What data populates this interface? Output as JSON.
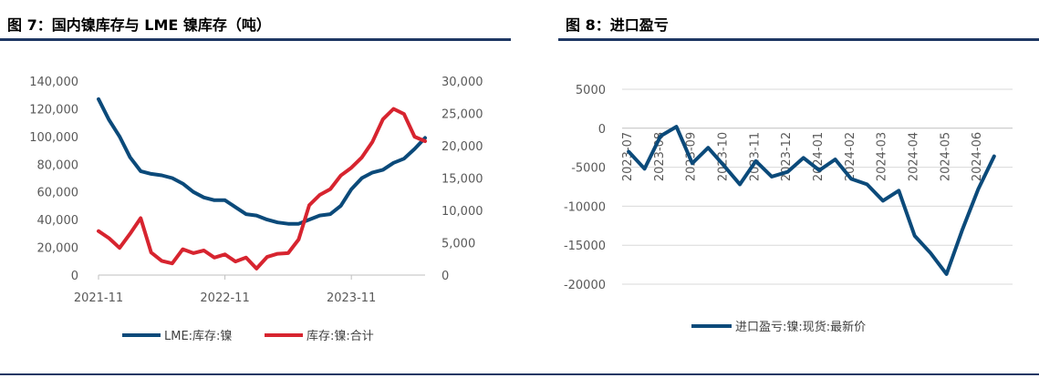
{
  "figures": {
    "left_title": "图 7：国内镍库存与 LME 镍库存（吨）",
    "right_title": "图 8：进口盈亏"
  },
  "colors": {
    "rule": "#1f3864",
    "navy": "#0b4a7a",
    "red": "#d7242f",
    "grid": "#d9d9d9",
    "tick": "#595959"
  },
  "chart_data": [
    {
      "type": "line",
      "title": "",
      "x_ticks": [
        "2021-11",
        "2022-11",
        "2023-11"
      ],
      "y_left_ticks": [
        "0",
        "20,000",
        "40,000",
        "60,000",
        "80,000",
        "100,000",
        "120,000",
        "140,000"
      ],
      "y_right_ticks": [
        "0",
        "5,000",
        "10,000",
        "15,000",
        "20,000",
        "25,000",
        "30,000"
      ],
      "ylim_left": [
        0,
        140000
      ],
      "ylim_right": [
        0,
        30000
      ],
      "xlim": [
        "2021-11",
        "2024-06"
      ],
      "grid": false,
      "legend_position": "bottom",
      "series": [
        {
          "name": "LME:库存:镍",
          "axis": "left",
          "color": "#0b4a7a",
          "x": [
            "2021-11",
            "2021-12",
            "2022-01",
            "2022-02",
            "2022-03",
            "2022-04",
            "2022-05",
            "2022-06",
            "2022-07",
            "2022-08",
            "2022-09",
            "2022-10",
            "2022-11",
            "2022-12",
            "2023-01",
            "2023-02",
            "2023-03",
            "2023-04",
            "2023-05",
            "2023-06",
            "2023-07",
            "2023-08",
            "2023-09",
            "2023-10",
            "2023-11",
            "2023-12",
            "2024-01",
            "2024-02",
            "2024-03",
            "2024-04",
            "2024-05",
            "2024-06"
          ],
          "y": [
            127000,
            112000,
            100000,
            85000,
            75000,
            73000,
            72000,
            70000,
            66000,
            60000,
            56000,
            54000,
            54000,
            49000,
            44000,
            43000,
            40000,
            38000,
            37000,
            37000,
            40000,
            43000,
            44000,
            50000,
            62000,
            70000,
            74000,
            76000,
            81000,
            84000,
            91000,
            99000
          ]
        },
        {
          "name": "库存:镍:合计",
          "axis": "right",
          "color": "#d7242f",
          "x": [
            "2021-11",
            "2021-12",
            "2022-01",
            "2022-02",
            "2022-03",
            "2022-04",
            "2022-05",
            "2022-06",
            "2022-07",
            "2022-08",
            "2022-09",
            "2022-10",
            "2022-11",
            "2022-12",
            "2023-01",
            "2023-02",
            "2023-03",
            "2023-04",
            "2023-05",
            "2023-06",
            "2023-07",
            "2023-08",
            "2023-09",
            "2023-10",
            "2023-11",
            "2023-12",
            "2024-01",
            "2024-02",
            "2024-03",
            "2024-04",
            "2024-05",
            "2024-06"
          ],
          "y": [
            6800,
            5700,
            4200,
            6400,
            8800,
            3500,
            2200,
            1800,
            4000,
            3400,
            3800,
            2700,
            3200,
            2100,
            2700,
            1000,
            2800,
            3300,
            3400,
            5500,
            10800,
            12400,
            13300,
            15400,
            16600,
            18200,
            20600,
            24100,
            25700,
            24900,
            21400,
            20700
          ]
        }
      ]
    },
    {
      "type": "line",
      "title": "",
      "x_ticks": [
        "2023-07",
        "2023-08",
        "2023-09",
        "2023-10",
        "2023-11",
        "2023-12",
        "2024-01",
        "2024-02",
        "2024-03",
        "2024-04",
        "2024-05",
        "2024-06"
      ],
      "y_ticks": [
        "5000",
        "0",
        "-5000",
        "-10000",
        "-15000",
        "-20000"
      ],
      "ylim": [
        -20000,
        5000
      ],
      "xlim": [
        "2023-07",
        "2024-06"
      ],
      "grid": true,
      "legend_position": "bottom",
      "series": [
        {
          "name": "进口盈亏:镍:现货:最新价",
          "color": "#0b4a7a",
          "x": [
            "2023-07",
            "2023-07",
            "2023-08",
            "2023-08",
            "2023-09",
            "2023-09",
            "2023-10",
            "2023-10",
            "2023-11",
            "2023-11",
            "2023-12",
            "2023-12",
            "2024-01",
            "2024-01",
            "2024-02",
            "2024-02",
            "2024-03",
            "2024-03",
            "2024-04",
            "2024-04",
            "2024-05",
            "2024-05",
            "2024-06",
            "2024-06"
          ],
          "y": [
            -3000,
            -5200,
            -1000,
            200,
            -4500,
            -2500,
            -4800,
            -7200,
            -4200,
            -6200,
            -5600,
            -3800,
            -5400,
            -4000,
            -6500,
            -7200,
            -9300,
            -8000,
            -13800,
            -16000,
            -18700,
            -13000,
            -7800,
            -3600
          ]
        }
      ]
    }
  ],
  "legends": {
    "left": [
      "LME:库存:镍",
      "库存:镍:合计"
    ],
    "right": [
      "进口盈亏:镍:现货:最新价"
    ]
  }
}
